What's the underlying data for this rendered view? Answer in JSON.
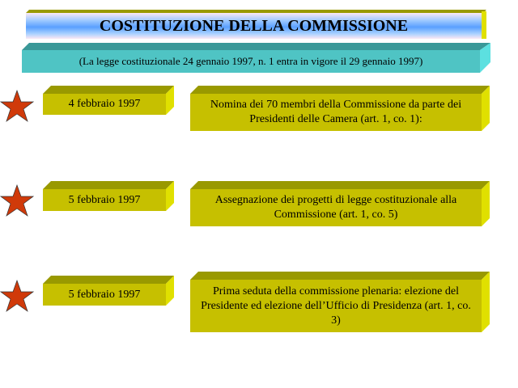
{
  "title": "COSTITUZIONE DELLA COMMISSIONE",
  "subtitle": "(La legge costituzionale 24 gennaio 1997, n. 1 entra in vigore il 29 gennaio 1997)",
  "colors": {
    "box_face": "#c6c000",
    "box_top": "#999900",
    "box_side": "#e0e000",
    "teal_face": "#4fc4c4",
    "star": "#d03a0a"
  },
  "events": [
    {
      "date": "4 febbraio 1997",
      "text": "Nomina dei 70 membri della Commissione da parte dei Presidenti delle Camera (art. 1, co. 1):",
      "icon": "star-icon"
    },
    {
      "date": "5 febbraio 1997",
      "text": "Assegnazione dei progetti di legge costituzionale alla Commissione  (art. 1, co. 5)",
      "icon": "star-icon"
    },
    {
      "date": "5 febbraio 1997",
      "text": "Prima seduta della commissione plenaria: elezione del  Presidente ed elezione dell’Ufficio di Presidenza (art. 1, co. 3)",
      "icon": "star-icon"
    }
  ]
}
